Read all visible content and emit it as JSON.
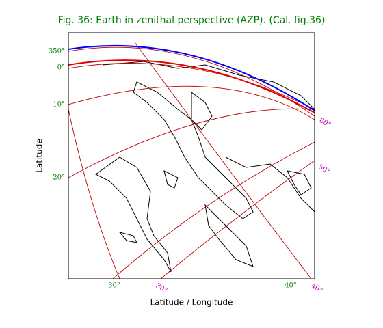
{
  "title": "Fig. 36: Earth in zenithal perspective (AZP). (Cal. fig.36)",
  "x_label": "Latitude / Longitude",
  "y_label": "Latitude",
  "left_labels": [
    "350°",
    "0°",
    "10°",
    "20°"
  ],
  "bottom_labels": [
    "30°",
    "40°"
  ],
  "right_labels": [
    "60°",
    "50°",
    "30°",
    "40°"
  ]
}
